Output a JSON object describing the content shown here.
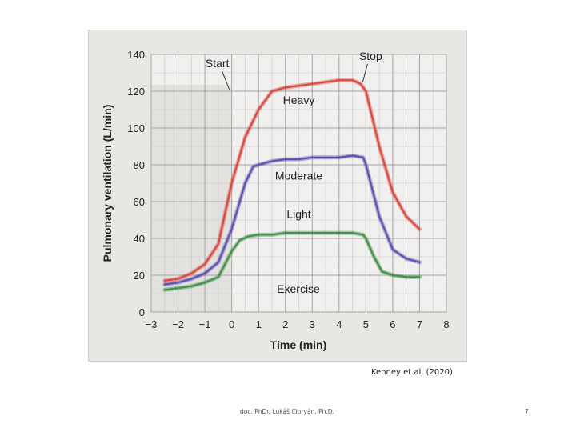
{
  "chart_data": {
    "type": "line",
    "title": "",
    "xlabel": "Time (min)",
    "ylabel": "Pulmonary ventilation (L/min)",
    "xlim": [
      -3,
      8
    ],
    "ylim": [
      0,
      140
    ],
    "xticks": [
      -3,
      -2,
      -1,
      0,
      1,
      2,
      3,
      4,
      5,
      6,
      7,
      8
    ],
    "yticks": [
      0,
      20,
      40,
      60,
      80,
      100,
      120,
      140
    ],
    "grid": true,
    "legend": "none",
    "annotations": [
      {
        "text": "Start",
        "x": 0
      },
      {
        "text": "Stop",
        "x": 5
      }
    ],
    "exercise_label": "Exercise",
    "series": [
      {
        "name": "Heavy",
        "color": "#d9463f",
        "x": [
          -2.5,
          -2,
          -1.5,
          -1,
          -0.5,
          0,
          0.5,
          1,
          1.5,
          2,
          2.5,
          3,
          3.5,
          4,
          4.5,
          4.8,
          5,
          5.5,
          6,
          6.5,
          7
        ],
        "y": [
          17,
          18,
          21,
          26,
          37,
          70,
          95,
          110,
          120,
          122,
          123,
          124,
          125,
          126,
          126,
          124,
          120,
          90,
          65,
          52,
          45
        ]
      },
      {
        "name": "Moderate",
        "color": "#5a4fb0",
        "x": [
          -2.5,
          -2,
          -1.5,
          -1,
          -0.5,
          0,
          0.5,
          0.8,
          1,
          1.5,
          2,
          2.5,
          3,
          3.5,
          4,
          4.5,
          4.9,
          5,
          5.5,
          6,
          6.5,
          7
        ],
        "y": [
          15,
          16,
          18,
          21,
          27,
          45,
          70,
          79,
          80,
          82,
          83,
          83,
          84,
          84,
          84,
          85,
          84,
          80,
          52,
          34,
          29,
          27
        ]
      },
      {
        "name": "Light",
        "color": "#3f8f47",
        "x": [
          -2.5,
          -2,
          -1.5,
          -1,
          -0.5,
          0,
          0.3,
          0.6,
          1,
          1.5,
          2,
          2.5,
          3,
          3.5,
          4,
          4.5,
          4.9,
          5,
          5.3,
          5.6,
          6,
          6.5,
          7
        ],
        "y": [
          12,
          13,
          14,
          16,
          19,
          33,
          39,
          41,
          42,
          42,
          43,
          43,
          43,
          43,
          43,
          43,
          42,
          40,
          30,
          22,
          20,
          19,
          19
        ]
      }
    ]
  },
  "citation": "Kenney et al. (2020)",
  "footer": {
    "author": "doc. PhDr. Lukáš Cipryán, Ph.D.",
    "page": "7"
  }
}
